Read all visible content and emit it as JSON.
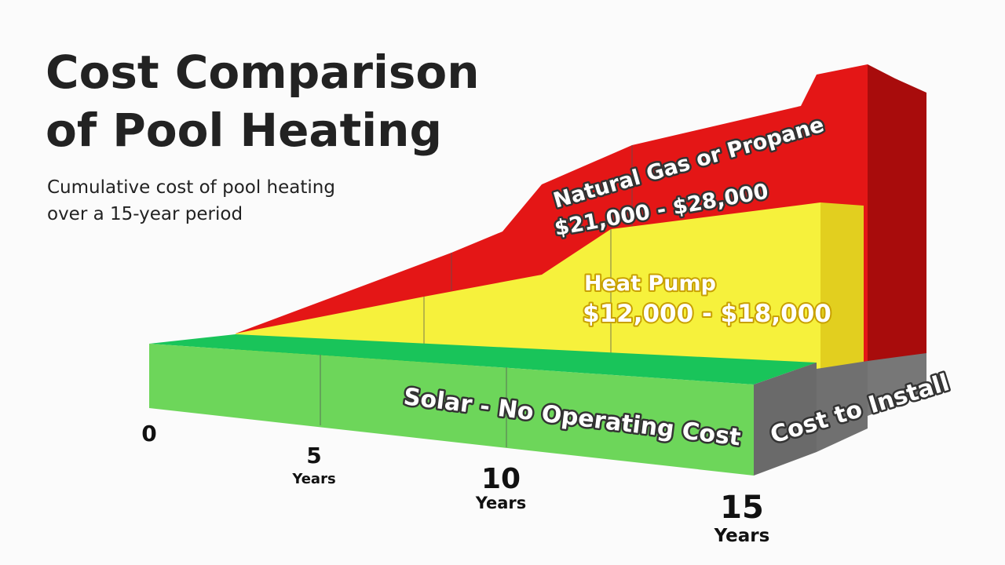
{
  "header": {
    "title_lines": [
      "Cost Comparison",
      "of Pool Heating"
    ],
    "subtitle_lines": [
      "Cumulative cost of pool heating",
      "over a 15-year period"
    ]
  },
  "layers": [
    {
      "name": "Natural Gas or Propane",
      "range": "$21,000 - $28,000"
    },
    {
      "name": "Heat Pump",
      "range": "$12,000 - $18,000"
    },
    {
      "name": "Solar - No Operating Cost"
    }
  ],
  "install_label": "Cost to Install",
  "x_labels": [
    {
      "number": "0"
    },
    {
      "number": "5",
      "unit": "Years"
    },
    {
      "number": "10",
      "unit": "Years"
    },
    {
      "number": "15",
      "unit": "Years"
    }
  ]
}
